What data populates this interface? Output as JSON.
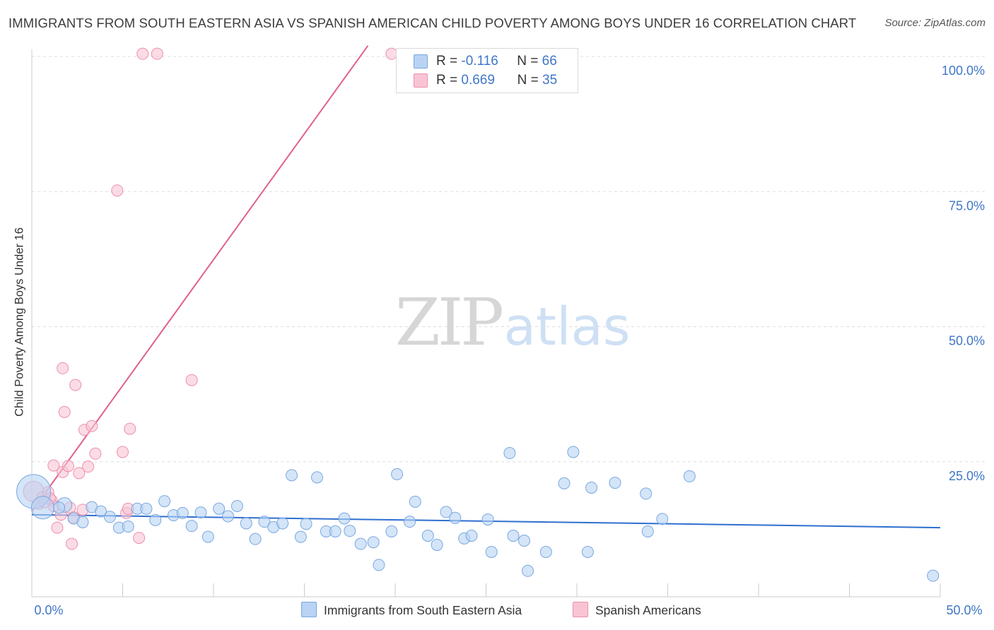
{
  "title": "IMMIGRANTS FROM SOUTH EASTERN ASIA VS SPANISH AMERICAN CHILD POVERTY AMONG BOYS UNDER 16 CORRELATION CHART",
  "source": "Source: ZipAtlas.com",
  "watermark": {
    "zip": "ZIP",
    "atlas": "atlas"
  },
  "colors": {
    "blue_fill": "#b8d3f3",
    "blue_stroke": "#7aa7e0",
    "blue_line": "#2f6fcf",
    "pink_fill": "#f8c4d3",
    "pink_stroke": "#ee8fae",
    "pink_line": "#e0608f",
    "axis_label": "#3f76c7",
    "grid": "#dddddd"
  },
  "legend_top": [
    {
      "r_label": "R =",
      "r_value": "-0.116",
      "n_label": "N =",
      "n_value": "66",
      "swatch": "blue"
    },
    {
      "r_label": "R =",
      "r_value": "0.669",
      "n_label": "N =",
      "n_value": "35",
      "swatch": "pink"
    }
  ],
  "legend_bottom": [
    {
      "label": "Immigrants from South Eastern Asia",
      "swatch": "blue"
    },
    {
      "label": "Spanish Americans",
      "swatch": "pink"
    }
  ],
  "chart_data": {
    "type": "scatter",
    "title": "IMMIGRANTS FROM SOUTH EASTERN ASIA VS SPANISH AMERICAN CHILD POVERTY AMONG BOYS UNDER 16 CORRELATION CHART",
    "xlabel": "",
    "ylabel": "Child Poverty Among Boys Under 16",
    "xlim": [
      0,
      50
    ],
    "ylim": [
      0,
      102
    ],
    "x_tick_labels": [
      {
        "value": 0,
        "label": "0.0%"
      },
      {
        "value": 50,
        "label": "50.0%"
      }
    ],
    "y_tick_labels": [
      {
        "value": 25,
        "label": "25.0%"
      },
      {
        "value": 50,
        "label": "50.0%"
      },
      {
        "value": 75,
        "label": "75.0%"
      },
      {
        "value": 100,
        "label": "100.0%"
      }
    ],
    "grid": true,
    "legend_position": "top-center",
    "series": [
      {
        "name": "Immigrants from South Eastern Asia",
        "color": "#b8d3f3",
        "points": [
          {
            "x": 0.1,
            "y": 19.5,
            "size": 3
          },
          {
            "x": 0.6,
            "y": 16.5,
            "size": 2
          },
          {
            "x": 1.8,
            "y": 17.0,
            "size": 1.3
          },
          {
            "x": 1.5,
            "y": 16.5
          },
          {
            "x": 2.3,
            "y": 14.5
          },
          {
            "x": 2.8,
            "y": 13.8
          },
          {
            "x": 3.3,
            "y": 16.6
          },
          {
            "x": 3.8,
            "y": 15.8
          },
          {
            "x": 4.3,
            "y": 14.8
          },
          {
            "x": 4.8,
            "y": 12.8
          },
          {
            "x": 5.3,
            "y": 13.0
          },
          {
            "x": 5.8,
            "y": 16.3
          },
          {
            "x": 6.3,
            "y": 16.3
          },
          {
            "x": 6.8,
            "y": 14.2
          },
          {
            "x": 7.3,
            "y": 17.7
          },
          {
            "x": 7.8,
            "y": 15.1
          },
          {
            "x": 8.3,
            "y": 15.5
          },
          {
            "x": 8.8,
            "y": 13.1
          },
          {
            "x": 9.3,
            "y": 15.6
          },
          {
            "x": 9.7,
            "y": 11.1
          },
          {
            "x": 10.3,
            "y": 16.3
          },
          {
            "x": 10.8,
            "y": 14.9
          },
          {
            "x": 11.3,
            "y": 16.8
          },
          {
            "x": 11.8,
            "y": 13.6
          },
          {
            "x": 12.3,
            "y": 10.7
          },
          {
            "x": 12.8,
            "y": 13.9
          },
          {
            "x": 13.3,
            "y": 12.9
          },
          {
            "x": 13.8,
            "y": 13.6
          },
          {
            "x": 14.3,
            "y": 22.5
          },
          {
            "x": 14.8,
            "y": 11.1
          },
          {
            "x": 15.1,
            "y": 13.5
          },
          {
            "x": 15.7,
            "y": 22.1
          },
          {
            "x": 16.2,
            "y": 12.1
          },
          {
            "x": 16.7,
            "y": 12.1
          },
          {
            "x": 17.2,
            "y": 14.5
          },
          {
            "x": 17.5,
            "y": 12.2
          },
          {
            "x": 18.1,
            "y": 9.8
          },
          {
            "x": 18.8,
            "y": 10.1
          },
          {
            "x": 19.1,
            "y": 5.9
          },
          {
            "x": 19.8,
            "y": 12.1
          },
          {
            "x": 20.1,
            "y": 22.7
          },
          {
            "x": 20.8,
            "y": 13.9
          },
          {
            "x": 21.1,
            "y": 17.6
          },
          {
            "x": 21.8,
            "y": 11.3
          },
          {
            "x": 22.3,
            "y": 9.6
          },
          {
            "x": 22.8,
            "y": 15.7
          },
          {
            "x": 23.3,
            "y": 14.6
          },
          {
            "x": 23.8,
            "y": 10.8
          },
          {
            "x": 24.2,
            "y": 11.3
          },
          {
            "x": 25.1,
            "y": 14.3
          },
          {
            "x": 25.3,
            "y": 8.3
          },
          {
            "x": 26.3,
            "y": 26.6
          },
          {
            "x": 26.5,
            "y": 11.3
          },
          {
            "x": 27.1,
            "y": 10.4
          },
          {
            "x": 27.3,
            "y": 4.8
          },
          {
            "x": 28.3,
            "y": 8.3
          },
          {
            "x": 29.3,
            "y": 21.0
          },
          {
            "x": 29.8,
            "y": 26.8
          },
          {
            "x": 30.6,
            "y": 8.3
          },
          {
            "x": 30.8,
            "y": 20.2
          },
          {
            "x": 32.1,
            "y": 21.1
          },
          {
            "x": 33.8,
            "y": 19.1
          },
          {
            "x": 33.9,
            "y": 12.1
          },
          {
            "x": 34.7,
            "y": 14.4
          },
          {
            "x": 36.2,
            "y": 22.3
          },
          {
            "x": 49.6,
            "y": 3.9
          }
        ]
      },
      {
        "name": "Spanish Americans",
        "color": "#f8c4d3",
        "points": [
          {
            "x": 0.1,
            "y": 19.5,
            "size": 1.8
          },
          {
            "x": 0.4,
            "y": 17.2
          },
          {
            "x": 0.6,
            "y": 18.4
          },
          {
            "x": 0.9,
            "y": 19.4
          },
          {
            "x": 1.1,
            "y": 17.8
          },
          {
            "x": 1.2,
            "y": 16.8
          },
          {
            "x": 1.4,
            "y": 12.8
          },
          {
            "x": 1.7,
            "y": 42.3
          },
          {
            "x": 1.7,
            "y": 23.1
          },
          {
            "x": 1.8,
            "y": 34.2
          },
          {
            "x": 2.0,
            "y": 24.2
          },
          {
            "x": 2.1,
            "y": 16.5
          },
          {
            "x": 2.2,
            "y": 9.8
          },
          {
            "x": 2.3,
            "y": 14.7
          },
          {
            "x": 1.2,
            "y": 24.3
          },
          {
            "x": 2.4,
            "y": 39.2
          },
          {
            "x": 2.6,
            "y": 22.9
          },
          {
            "x": 2.8,
            "y": 16.1
          },
          {
            "x": 2.9,
            "y": 30.9
          },
          {
            "x": 3.1,
            "y": 24.1
          },
          {
            "x": 3.3,
            "y": 31.6
          },
          {
            "x": 3.5,
            "y": 26.5
          },
          {
            "x": 4.7,
            "y": 75.2
          },
          {
            "x": 5.0,
            "y": 26.8
          },
          {
            "x": 5.2,
            "y": 15.5
          },
          {
            "x": 5.3,
            "y": 16.3
          },
          {
            "x": 5.4,
            "y": 31.1
          },
          {
            "x": 5.9,
            "y": 10.9
          },
          {
            "x": 6.1,
            "y": 100.5
          },
          {
            "x": 6.9,
            "y": 100.5
          },
          {
            "x": 8.8,
            "y": 40.1
          },
          {
            "x": 19.8,
            "y": 100.5
          },
          {
            "x": 1.0,
            "y": 18.2
          },
          {
            "x": 0.7,
            "y": 17.5
          },
          {
            "x": 1.6,
            "y": 15.2
          }
        ]
      }
    ],
    "trend_lines": [
      {
        "series": "Immigrants from South Eastern Asia",
        "x0": 0,
        "y0": 15.2,
        "x1": 50,
        "y1": 12.8
      },
      {
        "series": "Spanish Americans",
        "x0": 0,
        "y0": 15.8,
        "x1": 18.5,
        "y1": 102
      }
    ]
  }
}
